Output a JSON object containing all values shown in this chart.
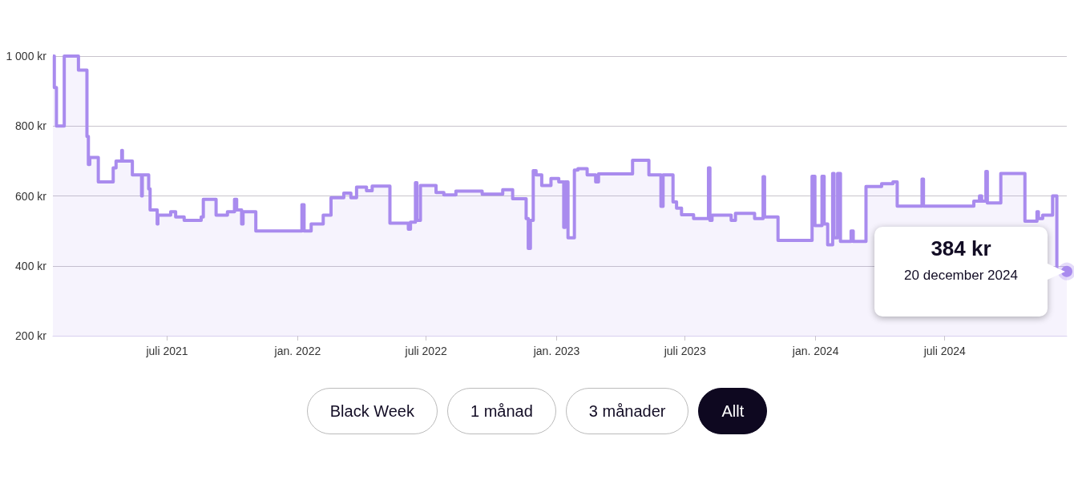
{
  "chart_data": {
    "type": "area",
    "color": "#a98bee",
    "x": [
      "2021-01-21",
      "2021-01-23",
      "2021-01-23",
      "2021-01-26",
      "2021-01-26",
      "2021-02-06",
      "2021-02-06",
      "2021-02-26",
      "2021-02-26",
      "2021-03-10",
      "2021-03-10",
      "2021-03-12",
      "2021-03-12",
      "2021-03-14",
      "2021-03-14",
      "2021-03-26",
      "2021-03-26",
      "2021-04-16",
      "2021-04-16",
      "2021-04-20",
      "2021-04-20",
      "2021-04-28",
      "2021-04-28",
      "2021-04-29",
      "2021-04-29",
      "2021-05-13",
      "2021-05-13",
      "2021-05-26",
      "2021-05-26",
      "2021-05-27",
      "2021-05-27",
      "2021-06-05",
      "2021-06-05",
      "2021-06-07",
      "2021-06-07",
      "2021-06-17",
      "2021-06-17",
      "2021-06-18",
      "2021-06-18",
      "2021-07-06",
      "2021-07-06",
      "2021-07-13",
      "2021-07-13",
      "2021-07-25",
      "2021-07-25",
      "2021-08-18",
      "2021-08-18",
      "2021-08-21",
      "2021-08-21",
      "2021-09-08",
      "2021-09-08",
      "2021-09-24",
      "2021-09-24",
      "2021-10-04",
      "2021-10-04",
      "2021-10-07",
      "2021-10-07",
      "2021-10-14",
      "2021-10-14",
      "2021-10-16",
      "2021-10-16",
      "2021-11-03",
      "2021-11-03",
      "2022-01-07",
      "2022-01-07",
      "2022-01-10",
      "2022-01-10",
      "2022-01-20",
      "2022-01-20",
      "2022-02-06",
      "2022-02-06",
      "2022-02-17",
      "2022-02-17",
      "2022-03-07",
      "2022-03-07",
      "2022-03-17",
      "2022-03-17",
      "2022-03-25",
      "2022-03-25",
      "2022-04-08",
      "2022-04-08",
      "2022-04-16",
      "2022-04-16",
      "2022-05-11",
      "2022-05-11",
      "2022-06-06",
      "2022-06-06",
      "2022-06-09",
      "2022-06-09",
      "2022-06-16",
      "2022-06-16",
      "2022-06-18",
      "2022-06-18",
      "2022-06-23",
      "2022-06-23",
      "2022-07-15",
      "2022-07-15",
      "2022-07-26",
      "2022-07-26",
      "2022-08-12",
      "2022-08-12",
      "2022-09-18",
      "2022-09-18",
      "2022-10-17",
      "2022-10-17",
      "2022-10-31",
      "2022-10-31",
      "2022-11-19",
      "2022-11-19",
      "2022-11-22",
      "2022-11-22",
      "2022-11-25",
      "2022-11-25",
      "2022-11-29",
      "2022-11-29",
      "2022-12-03",
      "2022-12-03",
      "2022-12-11",
      "2022-12-11",
      "2022-12-24",
      "2022-12-24",
      "2023-01-04",
      "2023-01-04",
      "2023-01-11",
      "2023-01-11",
      "2023-01-13",
      "2023-01-13",
      "2023-01-17",
      "2023-01-17",
      "2023-01-26",
      "2023-01-26",
      "2023-01-31",
      "2023-01-31",
      "2023-02-13",
      "2023-02-13",
      "2023-02-25",
      "2023-02-25",
      "2023-03-01",
      "2023-03-01",
      "2023-04-18",
      "2023-04-18",
      "2023-05-11",
      "2023-05-11",
      "2023-05-28",
      "2023-05-28",
      "2023-05-31",
      "2023-05-31",
      "2023-06-14",
      "2023-06-14",
      "2023-06-19",
      "2023-06-19",
      "2023-06-26",
      "2023-06-26",
      "2023-07-13",
      "2023-07-13",
      "2023-08-03",
      "2023-08-03",
      "2023-08-05",
      "2023-08-05",
      "2023-08-08",
      "2023-08-08",
      "2023-09-04",
      "2023-09-04",
      "2023-09-10",
      "2023-09-10",
      "2023-10-07",
      "2023-10-07",
      "2023-10-19",
      "2023-10-19",
      "2023-10-21",
      "2023-10-21",
      "2023-11-09",
      "2023-11-09",
      "2023-12-27",
      "2023-12-27",
      "2023-12-31",
      "2023-12-31",
      "2024-01-10",
      "2024-01-10",
      "2024-01-13",
      "2024-01-13",
      "2024-01-18",
      "2024-01-18",
      "2024-01-25",
      "2024-01-25",
      "2024-01-27",
      "2024-01-27",
      "2024-02-01",
      "2024-02-01",
      "2024-02-05",
      "2024-02-05",
      "2024-02-20",
      "2024-02-20",
      "2024-02-23",
      "2024-02-23",
      "2024-03-12",
      "2024-03-12",
      "2024-04-03",
      "2024-04-03",
      "2024-04-19",
      "2024-04-19",
      "2024-04-25",
      "2024-04-25",
      "2024-05-30",
      "2024-05-30",
      "2024-06-01",
      "2024-06-01",
      "2024-08-11",
      "2024-08-11",
      "2024-08-19",
      "2024-08-19",
      "2024-08-22",
      "2024-08-22",
      "2024-08-28",
      "2024-08-28",
      "2024-08-30",
      "2024-08-30",
      "2024-09-18",
      "2024-09-18",
      "2024-10-22",
      "2024-10-22",
      "2024-11-08",
      "2024-11-08",
      "2024-11-10",
      "2024-11-10",
      "2024-11-16",
      "2024-11-16",
      "2024-11-30",
      "2024-11-30",
      "2024-12-06",
      "2024-12-06",
      "2024-12-20"
    ],
    "values": [
      1000,
      1000,
      910,
      910,
      800,
      800,
      1000,
      1000,
      960,
      960,
      770,
      770,
      690,
      690,
      710,
      710,
      640,
      640,
      680,
      680,
      700,
      700,
      730,
      730,
      700,
      700,
      660,
      660,
      600,
      600,
      660,
      660,
      620,
      620,
      560,
      560,
      520,
      520,
      545,
      545,
      555,
      555,
      540,
      540,
      530,
      530,
      540,
      540,
      590,
      590,
      545,
      545,
      555,
      555,
      590,
      590,
      560,
      560,
      520,
      520,
      555,
      555,
      500,
      500,
      575,
      575,
      500,
      500,
      520,
      520,
      545,
      545,
      595,
      595,
      608,
      608,
      595,
      595,
      625,
      625,
      615,
      615,
      628,
      628,
      522,
      522,
      505,
      505,
      525,
      525,
      638,
      638,
      530,
      530,
      630,
      630,
      610,
      610,
      603,
      603,
      614,
      614,
      605,
      605,
      618,
      618,
      592,
      592,
      535,
      535,
      450,
      450,
      530,
      530,
      672,
      672,
      660,
      660,
      630,
      630,
      650,
      650,
      640,
      640,
      510,
      510,
      640,
      640,
      480,
      480,
      674,
      674,
      678,
      678,
      660,
      660,
      640,
      640,
      663,
      663,
      702,
      702,
      660,
      660,
      570,
      570,
      660,
      660,
      583,
      583,
      565,
      565,
      546,
      546,
      535,
      535,
      680,
      680,
      530,
      530,
      545,
      545,
      530,
      530,
      550,
      550,
      535,
      535,
      655,
      655,
      540,
      540,
      473,
      473,
      656,
      656,
      515,
      515,
      656,
      656,
      520,
      520,
      460,
      460,
      664,
      664,
      480,
      480,
      664,
      664,
      470,
      470,
      500,
      500,
      470,
      470,
      627,
      627,
      635,
      635,
      640,
      640,
      571,
      571,
      648,
      648,
      571,
      571,
      585,
      585,
      600,
      600,
      585,
      585,
      670,
      670,
      580,
      580,
      664,
      664,
      528,
      528,
      555,
      555,
      535,
      535,
      545,
      545,
      600,
      600,
      384,
      384
    ],
    "xlim": [
      "2021-01-21",
      "2024-12-20"
    ],
    "xticks": [
      {
        "value": "2021-07-01",
        "label": "juli 2021"
      },
      {
        "value": "2022-01-01",
        "label": "jan. 2022"
      },
      {
        "value": "2022-07-01",
        "label": "juli 2022"
      },
      {
        "value": "2023-01-01",
        "label": "jan. 2023"
      },
      {
        "value": "2023-07-01",
        "label": "juli 2023"
      },
      {
        "value": "2024-01-01",
        "label": "jan. 2024"
      },
      {
        "value": "2024-07-01",
        "label": "juli 2024"
      }
    ],
    "ylim": [
      200,
      1000
    ],
    "yticks": [
      {
        "value": 200,
        "label": "200 kr"
      },
      {
        "value": 400,
        "label": "400 kr"
      },
      {
        "value": 600,
        "label": "600 kr"
      },
      {
        "value": 800,
        "label": "800 kr"
      },
      {
        "value": 1000,
        "label": "1 000 kr"
      }
    ],
    "grid": "y",
    "annotations": [
      "384 kr",
      "20 december 2024",
      "Black Week",
      "1 månad",
      "3 månader",
      "Allt"
    ]
  }
}
